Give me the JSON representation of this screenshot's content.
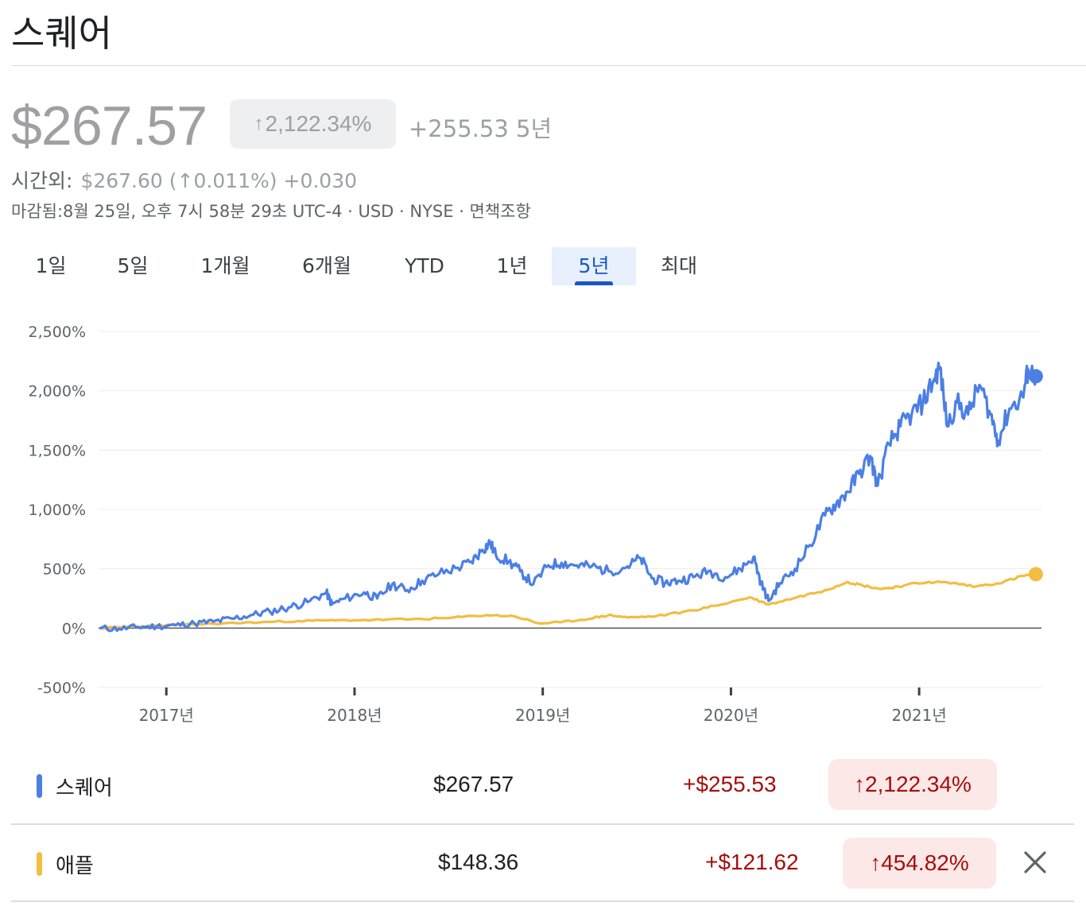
{
  "header": {
    "title": "스퀘어"
  },
  "quote": {
    "price": "$267.57",
    "change_arrow": "↑",
    "change_pct": "2,122.34%",
    "change_abs": "+255.53 5년",
    "after_hours_label": "시간외:",
    "after_hours_value": "$267.60 (↑0.011%) +0.030",
    "meta": "마감됨:8월 25일, 오후 7시 58분 29초 UTC-4 · USD · NYSE · 면책조항"
  },
  "tabs": [
    {
      "label": "1일"
    },
    {
      "label": "5일"
    },
    {
      "label": "1개월"
    },
    {
      "label": "6개월"
    },
    {
      "label": "YTD"
    },
    {
      "label": "1년"
    },
    {
      "label": "5년",
      "active": true
    },
    {
      "label": "최대"
    }
  ],
  "chart_data": {
    "type": "line",
    "yticks": [
      "2,500%",
      "2,000%",
      "1,500%",
      "1,000%",
      "500%",
      "0%",
      "-500%"
    ],
    "ylim": [
      -500,
      2500
    ],
    "xticks": [
      {
        "label": "2017년",
        "t": 2017.0
      },
      {
        "label": "2018년",
        "t": 2018.0
      },
      {
        "label": "2019년",
        "t": 2019.0
      },
      {
        "label": "2020년",
        "t": 2020.0
      },
      {
        "label": "2021년",
        "t": 2021.0
      }
    ],
    "xlim": [
      2016.64,
      2021.65
    ],
    "grid": true,
    "series": [
      {
        "name": "스퀘어",
        "color": "#4b7fe5",
        "points": [
          [
            2016.65,
            0
          ],
          [
            2016.75,
            -5
          ],
          [
            2016.85,
            10
          ],
          [
            2016.95,
            15
          ],
          [
            2017.05,
            25
          ],
          [
            2017.15,
            40
          ],
          [
            2017.25,
            55
          ],
          [
            2017.35,
            80
          ],
          [
            2017.45,
            110
          ],
          [
            2017.55,
            140
          ],
          [
            2017.65,
            175
          ],
          [
            2017.75,
            220
          ],
          [
            2017.85,
            300
          ],
          [
            2017.88,
            200
          ],
          [
            2017.95,
            250
          ],
          [
            2018.05,
            300
          ],
          [
            2018.12,
            250
          ],
          [
            2018.2,
            370
          ],
          [
            2018.28,
            320
          ],
          [
            2018.36,
            400
          ],
          [
            2018.45,
            460
          ],
          [
            2018.55,
            510
          ],
          [
            2018.62,
            560
          ],
          [
            2018.68,
            660
          ],
          [
            2018.72,
            720
          ],
          [
            2018.75,
            620
          ],
          [
            2018.82,
            560
          ],
          [
            2018.88,
            480
          ],
          [
            2018.95,
            370
          ],
          [
            2019.03,
            530
          ],
          [
            2019.1,
            550
          ],
          [
            2019.18,
            530
          ],
          [
            2019.26,
            520
          ],
          [
            2019.35,
            480
          ],
          [
            2019.45,
            520
          ],
          [
            2019.52,
            590
          ],
          [
            2019.58,
            420
          ],
          [
            2019.65,
            380
          ],
          [
            2019.72,
            400
          ],
          [
            2019.8,
            430
          ],
          [
            2019.88,
            480
          ],
          [
            2019.97,
            430
          ],
          [
            2020.05,
            500
          ],
          [
            2020.12,
            600
          ],
          [
            2020.16,
            380
          ],
          [
            2020.2,
            230
          ],
          [
            2020.26,
            380
          ],
          [
            2020.34,
            500
          ],
          [
            2020.42,
            700
          ],
          [
            2020.5,
            950
          ],
          [
            2020.56,
            1050
          ],
          [
            2020.62,
            1150
          ],
          [
            2020.68,
            1300
          ],
          [
            2020.74,
            1450
          ],
          [
            2020.78,
            1200
          ],
          [
            2020.84,
            1550
          ],
          [
            2020.9,
            1700
          ],
          [
            2020.96,
            1800
          ],
          [
            2021.02,
            1900
          ],
          [
            2021.08,
            2100
          ],
          [
            2021.11,
            2200
          ],
          [
            2021.15,
            1700
          ],
          [
            2021.2,
            1900
          ],
          [
            2021.26,
            1800
          ],
          [
            2021.32,
            2050
          ],
          [
            2021.38,
            1800
          ],
          [
            2021.42,
            1580
          ],
          [
            2021.48,
            1850
          ],
          [
            2021.55,
            1950
          ],
          [
            2021.58,
            2180
          ],
          [
            2021.62,
            2122.34
          ]
        ]
      },
      {
        "name": "애플",
        "color": "#f3bd42",
        "points": [
          [
            2016.65,
            0
          ],
          [
            2016.8,
            10
          ],
          [
            2016.95,
            20
          ],
          [
            2017.1,
            30
          ],
          [
            2017.3,
            40
          ],
          [
            2017.5,
            50
          ],
          [
            2017.7,
            60
          ],
          [
            2017.9,
            65
          ],
          [
            2018.1,
            70
          ],
          [
            2018.3,
            75
          ],
          [
            2018.5,
            85
          ],
          [
            2018.7,
            110
          ],
          [
            2018.85,
            100
          ],
          [
            2018.98,
            40
          ],
          [
            2019.1,
            50
          ],
          [
            2019.25,
            80
          ],
          [
            2019.35,
            110
          ],
          [
            2019.45,
            90
          ],
          [
            2019.6,
            100
          ],
          [
            2019.8,
            150
          ],
          [
            2019.95,
            200
          ],
          [
            2020.1,
            260
          ],
          [
            2020.2,
            200
          ],
          [
            2020.35,
            260
          ],
          [
            2020.5,
            320
          ],
          [
            2020.62,
            390
          ],
          [
            2020.7,
            360
          ],
          [
            2020.8,
            330
          ],
          [
            2020.92,
            360
          ],
          [
            2021.05,
            390
          ],
          [
            2021.18,
            380
          ],
          [
            2021.3,
            350
          ],
          [
            2021.45,
            390
          ],
          [
            2021.55,
            440
          ],
          [
            2021.62,
            454.82
          ]
        ]
      }
    ]
  },
  "legend": [
    {
      "name": "스퀘어",
      "color": "#4b7fe5",
      "price": "$267.57",
      "change": "+$255.53",
      "pct": "↑2,122.34%"
    },
    {
      "name": "애플",
      "color": "#f3bd42",
      "price": "$148.36",
      "change": "+$121.62",
      "pct": "↑454.82%"
    }
  ]
}
